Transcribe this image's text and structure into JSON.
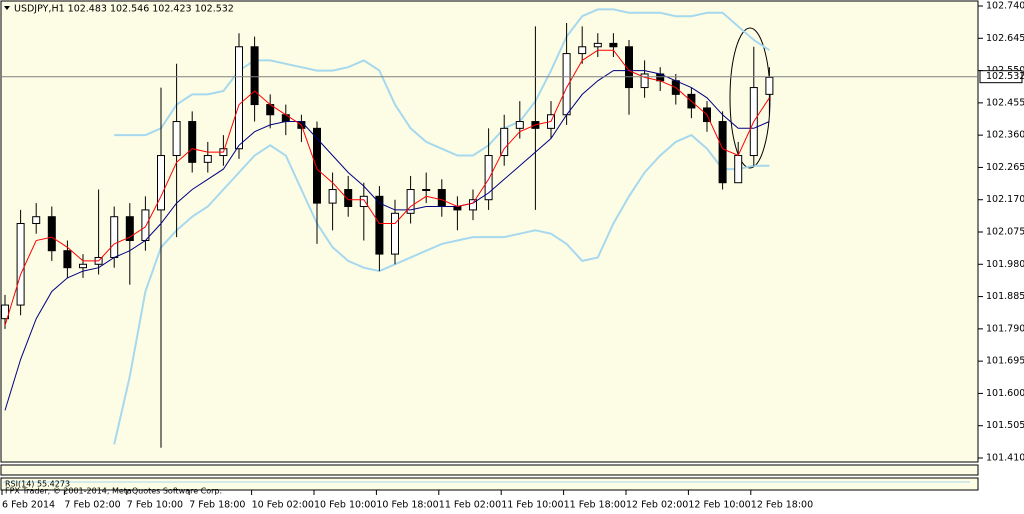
{
  "chart_data": {
    "type": "candlestick",
    "title": "USDJPY,H1  102.483 102.546 102.423 102.532",
    "categories": [
      "6 Feb 2014",
      null,
      null,
      null,
      "7 Feb 02:00",
      null,
      null,
      null,
      "7 Feb 10:00",
      null,
      null,
      null,
      "7 Feb 18:00",
      null,
      null,
      null,
      "10 Feb 02:00",
      null,
      null,
      null,
      "10 Feb 10:00",
      null,
      null,
      null,
      "10 Feb 18:00",
      null,
      null,
      null,
      "11 Feb 02:00",
      null,
      null,
      null,
      "11 Feb 10:00",
      null,
      null,
      null,
      "11 Feb 18:00",
      null,
      null,
      null,
      "12 Feb 02:00",
      null,
      null,
      null,
      "12 Feb 10:00",
      null,
      null,
      null,
      "12 Feb 18:00",
      null
    ],
    "open": [
      101.82,
      101.86,
      102.1,
      102.12,
      102.02,
      101.97,
      101.98,
      102.0,
      102.12,
      102.05,
      102.14,
      102.3,
      102.4,
      102.28,
      102.3,
      102.32,
      102.62,
      102.45,
      102.42,
      102.4,
      102.38,
      102.16,
      102.2,
      102.15,
      102.18,
      102.01,
      102.13,
      102.2,
      102.2,
      102.15,
      102.14,
      102.17,
      102.3,
      102.38,
      102.4,
      102.38,
      102.42,
      102.6,
      102.62,
      102.63,
      102.62,
      102.5,
      102.54,
      102.52,
      102.48,
      102.44,
      102.4,
      102.22,
      102.3,
      102.48
    ],
    "high": [
      101.89,
      102.14,
      102.16,
      102.15,
      102.05,
      102.01,
      102.2,
      102.15,
      102.16,
      102.18,
      102.5,
      102.57,
      102.43,
      102.34,
      102.36,
      102.66,
      102.65,
      102.48,
      102.45,
      102.42,
      102.4,
      102.25,
      102.24,
      102.22,
      102.21,
      102.17,
      102.24,
      102.25,
      102.23,
      102.18,
      102.2,
      102.38,
      102.42,
      102.46,
      102.68,
      102.46,
      102.69,
      102.68,
      102.66,
      102.66,
      102.64,
      102.58,
      102.56,
      102.54,
      102.5,
      102.46,
      102.43,
      102.34,
      102.62,
      102.56
    ],
    "low": [
      101.79,
      101.83,
      102.07,
      101.99,
      101.94,
      101.94,
      101.95,
      101.97,
      101.92,
      102.02,
      101.44,
      102.06,
      102.25,
      102.25,
      102.27,
      102.29,
      102.4,
      102.38,
      102.36,
      102.34,
      102.04,
      102.08,
      102.12,
      102.05,
      101.96,
      101.98,
      102.1,
      102.16,
      102.12,
      102.08,
      102.11,
      102.14,
      102.27,
      102.35,
      102.14,
      102.35,
      102.39,
      102.57,
      102.59,
      102.59,
      102.42,
      102.47,
      102.49,
      102.45,
      102.41,
      102.37,
      102.2,
      102.22,
      102.27,
      102.42
    ],
    "close": [
      101.86,
      102.1,
      102.12,
      102.02,
      101.97,
      101.98,
      102.0,
      102.12,
      102.05,
      102.14,
      102.3,
      102.4,
      102.28,
      102.3,
      102.32,
      102.62,
      102.45,
      102.42,
      102.4,
      102.38,
      102.16,
      102.2,
      102.15,
      102.18,
      102.01,
      102.13,
      102.2,
      102.2,
      102.15,
      102.14,
      102.17,
      102.3,
      102.38,
      102.4,
      102.38,
      102.42,
      102.6,
      102.62,
      102.63,
      102.62,
      102.5,
      102.54,
      102.52,
      102.48,
      102.44,
      102.4,
      102.22,
      102.3,
      102.5,
      102.53
    ],
    "bull_color": "#ffffff",
    "bear_color": "#000000",
    "series": [
      {
        "color": "#a6d8ee",
        "values": [
          null,
          null,
          null,
          null,
          null,
          null,
          null,
          102.36,
          102.36,
          102.36,
          102.38,
          102.45,
          102.48,
          102.48,
          102.49,
          102.55,
          102.58,
          102.58,
          102.57,
          102.56,
          102.55,
          102.55,
          102.56,
          102.58,
          102.55,
          102.45,
          102.38,
          102.34,
          102.32,
          102.3,
          102.3,
          102.33,
          102.38,
          102.4,
          102.46,
          102.55,
          102.65,
          102.71,
          102.73,
          102.73,
          102.72,
          102.72,
          102.72,
          102.71,
          102.71,
          102.72,
          102.72,
          102.68,
          102.64,
          102.61
        ]
      },
      {
        "color": "#a6d8ee",
        "values": [
          null,
          null,
          null,
          null,
          null,
          null,
          null,
          101.45,
          101.65,
          101.9,
          102.03,
          102.08,
          102.12,
          102.15,
          102.2,
          102.25,
          102.3,
          102.33,
          102.3,
          102.2,
          102.1,
          102.03,
          101.99,
          101.97,
          101.96,
          101.98,
          102.0,
          102.02,
          102.04,
          102.05,
          102.06,
          102.06,
          102.06,
          102.07,
          102.08,
          102.07,
          102.04,
          101.99,
          102.0,
          102.1,
          102.18,
          102.25,
          102.3,
          102.34,
          102.36,
          102.32,
          102.26,
          102.26,
          102.27,
          102.27
        ]
      },
      {
        "color": "#000080",
        "values": [
          101.55,
          101.7,
          101.82,
          101.9,
          101.94,
          101.96,
          101.97,
          102.0,
          102.02,
          102.05,
          102.1,
          102.16,
          102.2,
          102.23,
          102.26,
          102.33,
          102.37,
          102.39,
          102.4,
          102.4,
          102.35,
          102.3,
          102.25,
          102.21,
          102.16,
          102.14,
          102.14,
          102.15,
          102.15,
          102.15,
          102.16,
          102.19,
          102.23,
          102.27,
          102.31,
          102.35,
          102.42,
          102.48,
          102.52,
          102.55,
          102.55,
          102.55,
          102.54,
          102.52,
          102.5,
          102.47,
          102.42,
          102.38,
          102.38,
          102.4
        ]
      },
      {
        "color": "#ff0000",
        "values": [
          101.8,
          101.95,
          102.05,
          102.06,
          102.03,
          101.99,
          101.99,
          102.04,
          102.06,
          102.09,
          102.18,
          102.28,
          102.32,
          102.31,
          102.31,
          102.45,
          102.49,
          102.45,
          102.42,
          102.39,
          102.26,
          102.22,
          102.17,
          102.17,
          102.1,
          102.1,
          102.15,
          102.18,
          102.17,
          102.15,
          102.16,
          102.23,
          102.32,
          102.37,
          102.39,
          102.4,
          102.5,
          102.58,
          102.61,
          102.61,
          102.55,
          102.53,
          102.52,
          102.5,
          102.46,
          102.42,
          102.32,
          102.3,
          102.4,
          102.47
        ]
      }
    ],
    "ylim": [
      101.38,
      102.76
    ],
    "yticks": [
      {
        "value": 102.74,
        "label": "102.740"
      },
      {
        "value": 102.645,
        "label": "102.645"
      },
      {
        "value": 102.55,
        "label": "102.550"
      },
      {
        "value": 102.455,
        "label": "102.455"
      },
      {
        "value": 102.36,
        "label": "102.360"
      },
      {
        "value": 102.265,
        "label": "102.265"
      },
      {
        "value": 102.17,
        "label": "102.170"
      },
      {
        "value": 102.075,
        "label": "102.075"
      },
      {
        "value": 101.98,
        "label": "101.980"
      },
      {
        "value": 101.885,
        "label": "101.885"
      },
      {
        "value": 101.79,
        "label": "101.790"
      },
      {
        "value": 101.695,
        "label": "101.695"
      },
      {
        "value": 101.6,
        "label": "101.600"
      },
      {
        "value": 101.505,
        "label": "101.505"
      },
      {
        "value": 101.41,
        "label": "101.410"
      }
    ],
    "current_price": {
      "value": 102.532,
      "label": "102.532"
    },
    "indicator_label": "RSI(14) 55.4273",
    "copyright": "FPX Trader, © 2001-2014, MetaQuotes Software Corp.",
    "grid": false
  }
}
